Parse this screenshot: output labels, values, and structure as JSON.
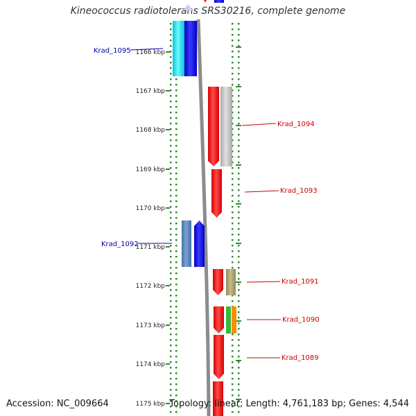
{
  "title": "Kineococcus radiotolerans SRS30216, complete genome",
  "accession_label": "Accession: NC_009664",
  "stats_label": "Topology: linear; Length: 4,761,183 bp; Genes: 4,544",
  "colors": {
    "background": "#ffffff",
    "backbone": "#8c8c8c",
    "tick": "#2e8b2e",
    "label_forward": "#0000b0",
    "label_reverse": "#cc0000"
  },
  "axis_ticks": [
    "1166 kbp",
    "1167 kbp",
    "1168 kbp",
    "1169 kbp",
    "1170 kbp",
    "1171 kbp",
    "1172 kbp",
    "1173 kbp",
    "1174 kbp",
    "1175 kbp"
  ],
  "gene_labels": [
    {
      "text": "Krad_1095",
      "strand": "forward"
    },
    {
      "text": "Krad_1094",
      "strand": "reverse"
    },
    {
      "text": "Krad_1093",
      "strand": "reverse"
    },
    {
      "text": "Krad_1092",
      "strand": "forward"
    },
    {
      "text": "Krad_1091",
      "strand": "reverse"
    },
    {
      "text": "Krad_1090",
      "strand": "reverse"
    },
    {
      "text": "Krad_1089",
      "strand": "reverse"
    }
  ]
}
